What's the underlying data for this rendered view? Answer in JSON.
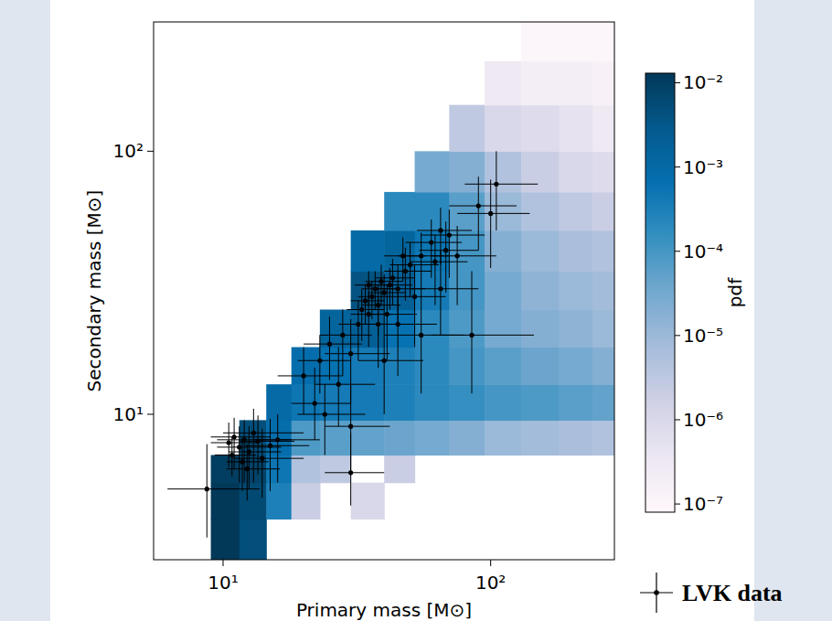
{
  "chart_data": {
    "type": "heatmap",
    "x_label": "Primary mass [M⊙]",
    "y_label": "Secondary mass [M⊙]",
    "log": true,
    "grid": false,
    "legend": "bottom right",
    "xlim": [
      5.5,
      290
    ],
    "ylim": [
      2.8,
      310
    ],
    "xticks": [
      {
        "value": 10,
        "label": "10¹"
      },
      {
        "value": 100,
        "label": "10²"
      }
    ],
    "yticks": [
      {
        "value": 10,
        "label": "10¹"
      },
      {
        "value": 100,
        "label": "10²"
      }
    ],
    "heatmap": {
      "x_edges": [
        9,
        11.5,
        14.5,
        18,
        23,
        30,
        40,
        52,
        70,
        95,
        130,
        180,
        240,
        290
      ],
      "y_edges": [
        2.8,
        4,
        5.5,
        7,
        9.5,
        13,
        18,
        25,
        35,
        50,
        70,
        100,
        150,
        220,
        310
      ],
      "cells": [
        [
          0.015,
          0.005,
          null,
          null,
          null,
          null,
          null,
          null,
          null,
          null,
          null,
          null,
          null
        ],
        [
          0.015,
          0.006,
          0.0003,
          2e-06,
          null,
          1e-06,
          null,
          null,
          null,
          null,
          null,
          null,
          null
        ],
        [
          0.01,
          0.008,
          0.0005,
          5e-06,
          3e-06,
          null,
          2e-06,
          null,
          null,
          null,
          null,
          null,
          null
        ],
        [
          null,
          0.005,
          0.0008,
          8e-05,
          6e-05,
          5e-05,
          4e-05,
          3e-05,
          2e-05,
          1e-05,
          8e-06,
          6e-06,
          5e-06
        ],
        [
          null,
          null,
          0.001,
          0.0005,
          0.0004,
          0.0004,
          0.0003,
          0.0002,
          0.00015,
          0.0001,
          8e-05,
          6e-05,
          5e-05
        ],
        [
          null,
          null,
          null,
          0.0008,
          0.0006,
          0.0004,
          0.0003,
          0.0002,
          0.0001,
          6e-05,
          4e-05,
          3e-05,
          2e-05
        ],
        [
          null,
          null,
          null,
          null,
          0.0015,
          0.002,
          0.0006,
          0.0002,
          8e-05,
          3e-05,
          2e-05,
          1.5e-05,
          1e-05
        ],
        [
          null,
          null,
          null,
          null,
          null,
          0.004,
          0.002,
          0.0004,
          0.0001,
          3e-05,
          1.5e-05,
          1e-05,
          8e-06
        ],
        [
          null,
          null,
          null,
          null,
          null,
          0.001,
          0.0015,
          0.0005,
          0.0001,
          2e-05,
          1e-05,
          6e-06,
          5e-06
        ],
        [
          null,
          null,
          null,
          null,
          null,
          null,
          0.0002,
          0.0002,
          6e-05,
          1e-05,
          5e-06,
          3e-06,
          2e-06
        ],
        [
          null,
          null,
          null,
          null,
          null,
          null,
          null,
          3e-05,
          2e-05,
          5e-06,
          2e-06,
          1e-06,
          8e-07
        ],
        [
          null,
          null,
          null,
          null,
          null,
          null,
          null,
          null,
          3e-06,
          1e-06,
          8e-07,
          5e-07,
          3e-07
        ],
        [
          null,
          null,
          null,
          null,
          null,
          null,
          null,
          null,
          null,
          3e-07,
          2e-07,
          2e-07,
          1.5e-07
        ],
        [
          null,
          null,
          null,
          null,
          null,
          null,
          null,
          null,
          null,
          null,
          1e-07,
          1e-07,
          1e-07
        ]
      ],
      "colorbar_label": "pdf",
      "colorbar_range": [
        8e-08,
        0.013
      ],
      "colorbar_ticks": [
        {
          "value": 0.01,
          "label": "10⁻²"
        },
        {
          "value": 0.001,
          "label": "10⁻³"
        },
        {
          "value": 0.0001,
          "label": "10⁻⁴"
        },
        {
          "value": 1e-05,
          "label": "10⁻⁵"
        },
        {
          "value": 1e-06,
          "label": "10⁻⁶"
        },
        {
          "value": 1e-07,
          "label": "10⁻⁷"
        }
      ]
    },
    "series": [
      {
        "name": "LVK data",
        "type": "scatter",
        "color": "#000000",
        "marker": "dot",
        "x": [
          8.7,
          10.5,
          11,
          11.5,
          12,
          12.5,
          13,
          13.5,
          11.8,
          14,
          10.8,
          15,
          16,
          12.3,
          30,
          20,
          22,
          24,
          23,
          25,
          27,
          28,
          30,
          30,
          32,
          33,
          34,
          35,
          36,
          37,
          38,
          39,
          40,
          42,
          43,
          35,
          38,
          41,
          45,
          48,
          50,
          47,
          52,
          55,
          60,
          62,
          65,
          68,
          70,
          75,
          55,
          85,
          90,
          100,
          105,
          45,
          40,
          65
        ],
        "values": [
          5.2,
          7.8,
          8.2,
          7.5,
          8.0,
          7.2,
          8.5,
          7.9,
          6.6,
          6.8,
          7.0,
          7.6,
          8.0,
          6.2,
          6.0,
          14,
          11,
          10,
          16,
          18.5,
          13,
          20,
          17,
          9,
          22,
          25,
          27,
          24,
          28,
          30,
          26,
          32,
          29,
          31,
          33,
          31,
          22,
          24,
          30,
          35,
          37,
          40,
          28,
          40,
          45,
          38,
          50,
          42,
          48,
          40,
          20,
          20,
          62,
          58,
          75,
          22,
          16,
          30
        ],
        "x_err": [
          [
            2.5,
            5
          ],
          [
            1.5,
            3
          ],
          [
            2,
            4
          ],
          [
            2,
            5
          ],
          [
            2.5,
            6
          ],
          [
            2,
            4
          ],
          [
            3,
            7
          ],
          [
            2,
            5
          ],
          [
            1.5,
            3
          ],
          [
            3,
            6
          ],
          [
            1.5,
            2.5
          ],
          [
            3,
            6
          ],
          [
            3,
            7
          ],
          [
            2,
            4
          ],
          [
            6,
            10
          ],
          [
            4,
            8
          ],
          [
            4,
            8
          ],
          [
            5,
            10
          ],
          [
            4,
            7
          ],
          [
            5,
            8
          ],
          [
            5,
            10
          ],
          [
            5,
            8
          ],
          [
            6,
            12
          ],
          [
            6,
            12
          ],
          [
            5,
            9
          ],
          [
            4,
            7
          ],
          [
            4,
            6
          ],
          [
            5,
            8
          ],
          [
            4,
            6
          ],
          [
            4,
            7
          ],
          [
            5,
            8
          ],
          [
            5,
            8
          ],
          [
            5,
            8
          ],
          [
            5,
            9
          ],
          [
            6,
            9
          ],
          [
            4,
            6
          ],
          [
            6,
            10
          ],
          [
            7,
            12
          ],
          [
            7,
            12
          ],
          [
            8,
            12
          ],
          [
            8,
            14
          ],
          [
            7,
            10
          ],
          [
            10,
            16
          ],
          [
            10,
            15
          ],
          [
            12,
            18
          ],
          [
            12,
            20
          ],
          [
            12,
            20
          ],
          [
            14,
            22
          ],
          [
            15,
            25
          ],
          [
            15,
            30
          ],
          [
            15,
            25
          ],
          [
            25,
            60
          ],
          [
            20,
            35
          ],
          [
            25,
            40
          ],
          [
            25,
            45
          ],
          [
            10,
            18
          ],
          [
            8,
            16
          ],
          [
            15,
            25
          ]
        ],
        "y_err": [
          [
            1.8,
            2.5
          ],
          [
            1.5,
            1.5
          ],
          [
            2,
            1.5
          ],
          [
            2,
            1.5
          ],
          [
            2.5,
            1.5
          ],
          [
            2,
            1.8
          ],
          [
            3,
            2
          ],
          [
            2,
            2
          ],
          [
            1.5,
            1.5
          ],
          [
            2,
            2
          ],
          [
            1.2,
            1.2
          ],
          [
            2.5,
            2
          ],
          [
            2.5,
            2
          ],
          [
            1.5,
            1.5
          ],
          [
            1.5,
            2.5
          ],
          [
            4,
            4
          ],
          [
            3,
            4
          ],
          [
            3,
            3
          ],
          [
            4,
            4
          ],
          [
            5,
            5
          ],
          [
            4,
            5
          ],
          [
            6,
            5
          ],
          [
            6,
            6
          ],
          [
            3,
            4
          ],
          [
            6,
            5
          ],
          [
            6,
            5
          ],
          [
            5,
            4
          ],
          [
            6,
            5
          ],
          [
            5,
            4
          ],
          [
            5,
            5
          ],
          [
            6,
            5
          ],
          [
            6,
            5
          ],
          [
            6,
            5
          ],
          [
            6,
            5
          ],
          [
            7,
            6
          ],
          [
            5,
            4
          ],
          [
            7,
            6
          ],
          [
            8,
            7
          ],
          [
            8,
            7
          ],
          [
            8,
            8
          ],
          [
            9,
            8
          ],
          [
            8,
            7
          ],
          [
            10,
            9
          ],
          [
            10,
            9
          ],
          [
            12,
            10
          ],
          [
            12,
            10
          ],
          [
            13,
            11
          ],
          [
            13,
            12
          ],
          [
            15,
            12
          ],
          [
            14,
            12
          ],
          [
            8,
            10
          ],
          [
            8,
            15
          ],
          [
            20,
            18
          ],
          [
            22,
            20
          ],
          [
            25,
            25
          ],
          [
            8,
            8
          ],
          [
            6,
            7
          ],
          [
            10,
            12
          ]
        ]
      }
    ]
  }
}
